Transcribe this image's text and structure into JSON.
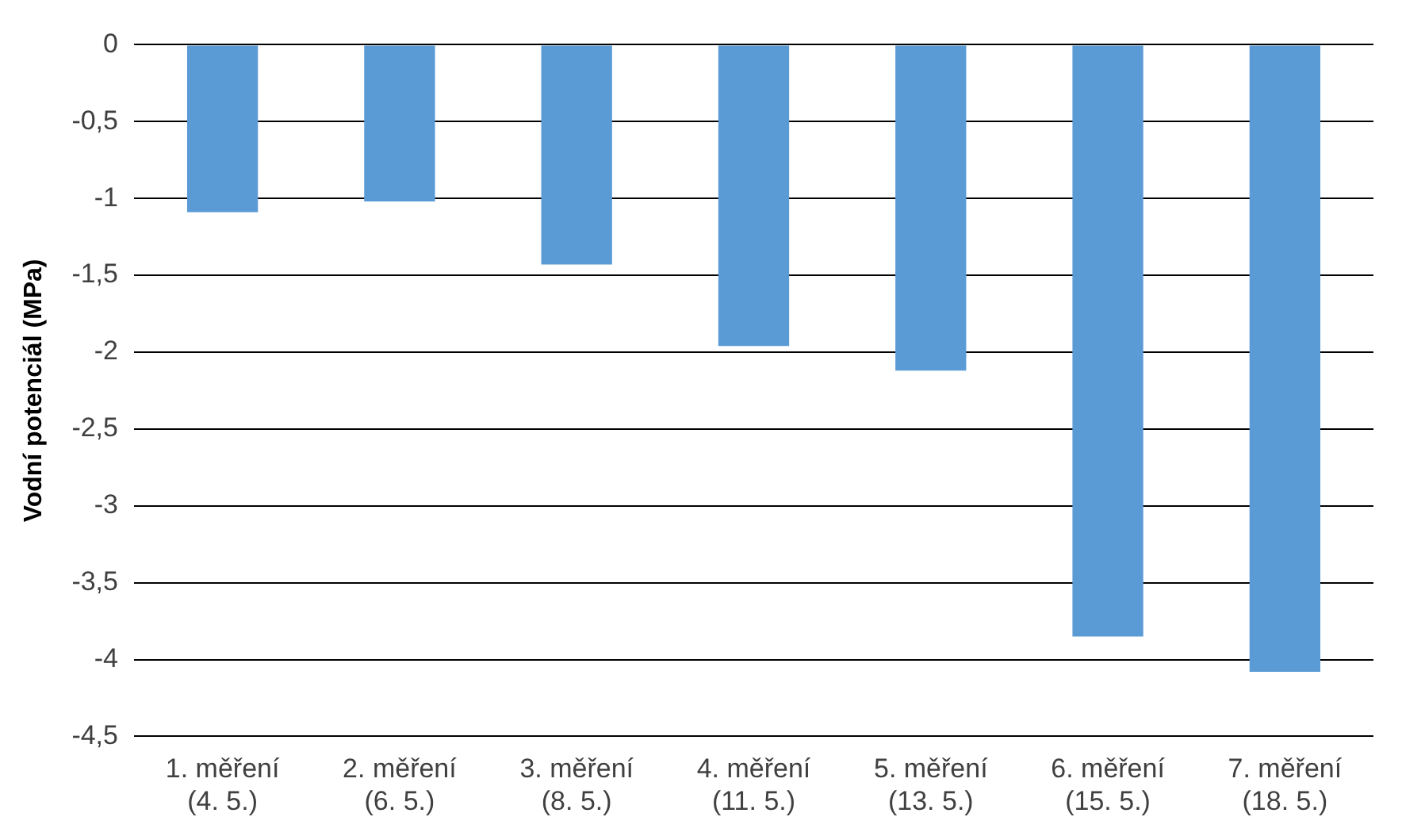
{
  "chart_data": {
    "type": "bar",
    "ylabel": "Vodní potenciál (MPa)",
    "categories": [
      "1. měření\n(4. 5.)",
      "2. měření\n(6. 5.)",
      "3. měření\n(8. 5.)",
      "4. měření\n(11. 5.)",
      "5. měření\n(13. 5.)",
      "6. měření\n(15. 5.)",
      "7. měření\n(18. 5.)"
    ],
    "values": [
      -1.09,
      -1.02,
      -1.43,
      -1.96,
      -2.12,
      -3.85,
      -4.08
    ],
    "color": "#5b9bd5",
    "ylim": [
      -4.5,
      0
    ],
    "yticks": [
      0,
      {
        "value": -0.5,
        "label": "-0,5"
      },
      -1,
      {
        "value": -1.5,
        "label": "-1,5"
      },
      -2,
      {
        "value": -2.5,
        "label": "-2,5"
      },
      -3,
      {
        "value": -3.5,
        "label": "-3,5"
      },
      -4,
      {
        "value": -4.5,
        "label": "-4,5"
      }
    ],
    "grid": "y"
  }
}
